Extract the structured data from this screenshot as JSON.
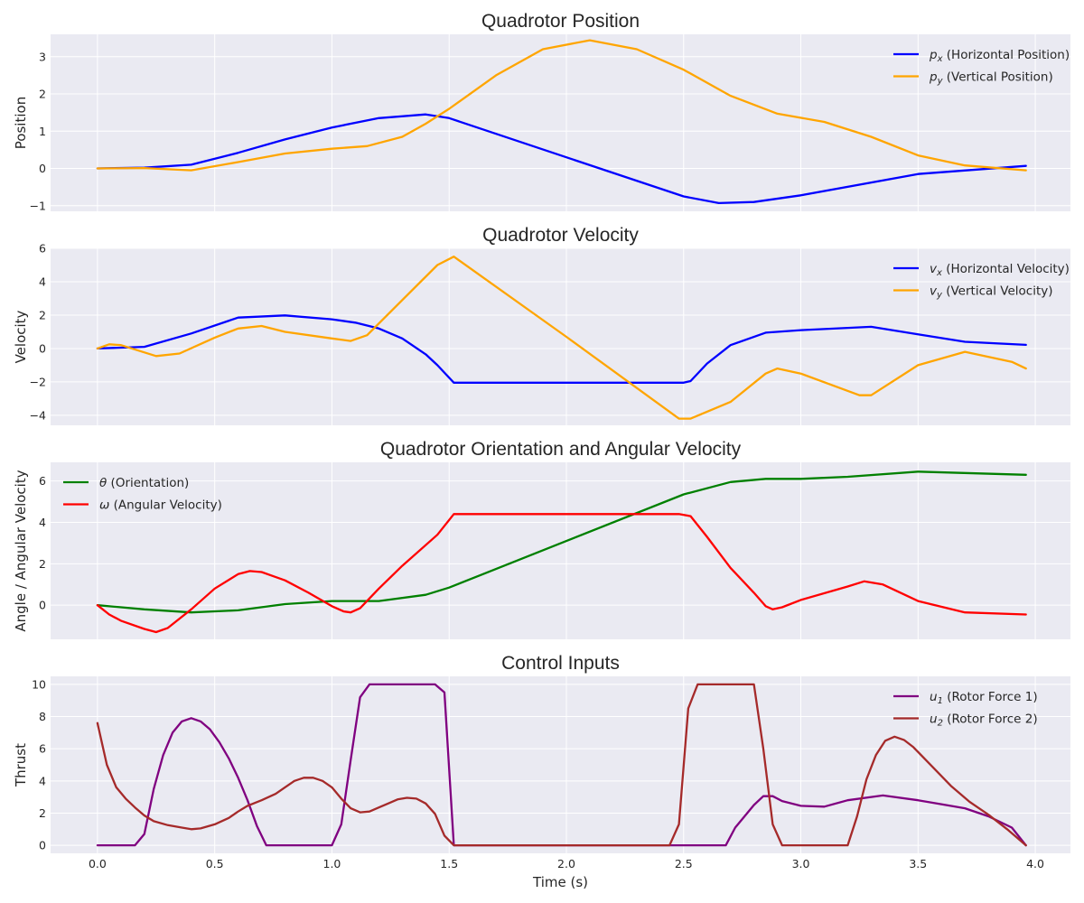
{
  "chart_data": [
    {
      "type": "line",
      "title": "Quadrotor Position",
      "xlabel": "",
      "ylabel": "Position",
      "xlim": [
        -0.2,
        4.15
      ],
      "ylim": [
        -1.15,
        3.6
      ],
      "xticks": [
        0.0,
        0.5,
        1.0,
        1.5,
        2.0,
        2.5,
        3.0,
        3.5,
        4.0
      ],
      "yticks": [
        -1,
        0,
        1,
        2,
        3
      ],
      "yticklabels": [
        "−1",
        "0",
        "1",
        "2",
        "3"
      ],
      "legend_position": "top-right",
      "series": [
        {
          "name": "p_x (Horizontal Position)",
          "label_base": "p",
          "label_sub": "x",
          "label_rest": " (Horizontal Position)",
          "color": "#0000ff",
          "x": [
            0,
            0.2,
            0.4,
            0.6,
            0.8,
            1.0,
            1.2,
            1.4,
            1.5,
            2.0,
            2.5,
            2.65,
            2.8,
            3.0,
            3.5,
            3.96
          ],
          "y": [
            0,
            0.02,
            0.1,
            0.42,
            0.78,
            1.1,
            1.35,
            1.45,
            1.35,
            0.3,
            -0.75,
            -0.93,
            -0.9,
            -0.72,
            -0.15,
            0.07
          ]
        },
        {
          "name": "p_y (Vertical Position)",
          "label_base": "p",
          "label_sub": "y",
          "label_rest": " (Vertical Position)",
          "color": "#ffa500",
          "x": [
            0,
            0.2,
            0.4,
            0.6,
            0.8,
            1.0,
            1.15,
            1.3,
            1.4,
            1.5,
            1.7,
            1.9,
            2.1,
            2.3,
            2.5,
            2.7,
            2.9,
            3.1,
            3.3,
            3.5,
            3.7,
            3.96
          ],
          "y": [
            0,
            0.01,
            -0.05,
            0.17,
            0.4,
            0.53,
            0.6,
            0.85,
            1.2,
            1.6,
            2.5,
            3.2,
            3.44,
            3.2,
            2.65,
            1.95,
            1.47,
            1.25,
            0.85,
            0.35,
            0.08,
            -0.05
          ]
        }
      ]
    },
    {
      "type": "line",
      "title": "Quadrotor Velocity",
      "xlabel": "",
      "ylabel": "Velocity",
      "xlim": [
        -0.2,
        4.15
      ],
      "ylim": [
        -4.6,
        6.0
      ],
      "xticks": [
        0.0,
        0.5,
        1.0,
        1.5,
        2.0,
        2.5,
        3.0,
        3.5,
        4.0
      ],
      "yticks": [
        -4,
        -2,
        0,
        2,
        4,
        6
      ],
      "yticklabels": [
        "−4",
        "−2",
        "0",
        "2",
        "4",
        "6"
      ],
      "legend_position": "top-right",
      "series": [
        {
          "name": "v_x (Horizontal Velocity)",
          "label_base": "v",
          "label_sub": "x",
          "label_rest": " (Horizontal Velocity)",
          "color": "#0000ff",
          "x": [
            0,
            0.2,
            0.4,
            0.6,
            0.8,
            1.0,
            1.1,
            1.2,
            1.3,
            1.4,
            1.45,
            1.52,
            2.0,
            2.5,
            2.53,
            2.6,
            2.7,
            2.85,
            3.0,
            3.3,
            3.5,
            3.7,
            3.96
          ],
          "y": [
            0,
            0.1,
            0.9,
            1.85,
            1.98,
            1.75,
            1.55,
            1.2,
            0.6,
            -0.35,
            -1.0,
            -2.05,
            -2.05,
            -2.05,
            -1.95,
            -0.9,
            0.2,
            0.95,
            1.1,
            1.3,
            0.85,
            0.4,
            0.22
          ]
        },
        {
          "name": "v_y (Vertical Velocity)",
          "label_base": "v",
          "label_sub": "y",
          "label_rest": " (Vertical Velocity)",
          "color": "#ffa500",
          "x": [
            0,
            0.05,
            0.1,
            0.25,
            0.35,
            0.5,
            0.6,
            0.7,
            0.8,
            1.0,
            1.08,
            1.15,
            1.3,
            1.45,
            1.52,
            2.0,
            2.48,
            2.53,
            2.7,
            2.85,
            2.9,
            3.0,
            3.25,
            3.3,
            3.5,
            3.7,
            3.9,
            3.96
          ],
          "y": [
            0,
            0.25,
            0.2,
            -0.45,
            -0.3,
            0.65,
            1.2,
            1.35,
            1.0,
            0.6,
            0.45,
            0.8,
            2.9,
            5.0,
            5.5,
            0.7,
            -4.2,
            -4.2,
            -3.2,
            -1.5,
            -1.2,
            -1.5,
            -2.8,
            -2.8,
            -1.0,
            -0.2,
            -0.8,
            -1.2
          ]
        }
      ]
    },
    {
      "type": "line",
      "title": "Quadrotor Orientation and Angular Velocity",
      "xlabel": "",
      "ylabel": "Angle / Angular Velocity",
      "xlim": [
        -0.2,
        4.15
      ],
      "ylim": [
        -1.65,
        6.9
      ],
      "xticks": [
        0.0,
        0.5,
        1.0,
        1.5,
        2.0,
        2.5,
        3.0,
        3.5,
        4.0
      ],
      "yticks": [
        0,
        2,
        4,
        6
      ],
      "yticklabels": [
        "0",
        "2",
        "4",
        "6"
      ],
      "legend_position": "top-left",
      "series": [
        {
          "name": "θ (Orientation)",
          "label_base": "θ",
          "label_sub": "",
          "label_rest": " (Orientation)",
          "color": "#008000",
          "x": [
            0,
            0.2,
            0.4,
            0.6,
            0.8,
            1.0,
            1.2,
            1.4,
            1.5,
            2.0,
            2.5,
            2.7,
            2.85,
            3.0,
            3.2,
            3.5,
            3.96
          ],
          "y": [
            0,
            -0.2,
            -0.35,
            -0.25,
            0.05,
            0.2,
            0.2,
            0.5,
            0.85,
            3.1,
            5.35,
            5.95,
            6.1,
            6.1,
            6.2,
            6.45,
            6.3
          ]
        },
        {
          "name": "ω (Angular Velocity)",
          "label_base": "ω",
          "label_sub": "",
          "label_rest": " (Angular Velocity)",
          "color": "#ff0000",
          "x": [
            0,
            0.05,
            0.1,
            0.2,
            0.25,
            0.3,
            0.4,
            0.5,
            0.6,
            0.65,
            0.7,
            0.8,
            0.9,
            1.0,
            1.05,
            1.08,
            1.12,
            1.2,
            1.3,
            1.45,
            1.52,
            2.0,
            2.48,
            2.53,
            2.6,
            2.7,
            2.8,
            2.85,
            2.88,
            2.92,
            3.0,
            3.2,
            3.27,
            3.35,
            3.5,
            3.7,
            3.96
          ],
          "y": [
            0,
            -0.45,
            -0.75,
            -1.15,
            -1.3,
            -1.1,
            -0.2,
            0.8,
            1.5,
            1.65,
            1.6,
            1.2,
            0.6,
            -0.05,
            -0.3,
            -0.35,
            -0.15,
            0.8,
            1.9,
            3.4,
            4.4,
            4.4,
            4.4,
            4.3,
            3.3,
            1.8,
            0.6,
            -0.05,
            -0.2,
            -0.1,
            0.25,
            0.9,
            1.15,
            1.0,
            0.2,
            -0.35,
            -0.45
          ]
        }
      ]
    },
    {
      "type": "line",
      "title": "Control Inputs",
      "xlabel": "Time (s)",
      "ylabel": "Thrust",
      "xlim": [
        -0.2,
        4.15
      ],
      "ylim": [
        -0.5,
        10.5
      ],
      "xticks": [
        0.0,
        0.5,
        1.0,
        1.5,
        2.0,
        2.5,
        3.0,
        3.5,
        4.0
      ],
      "yticks": [
        0,
        2,
        4,
        6,
        8,
        10
      ],
      "yticklabels": [
        "0",
        "2",
        "4",
        "6",
        "8",
        "10"
      ],
      "legend_position": "top-right",
      "series": [
        {
          "name": "u_1 (Rotor Force 1)",
          "label_base": "u",
          "label_sub": "1",
          "label_rest": " (Rotor Force 1)",
          "color": "#800080",
          "x": [
            0,
            0.16,
            0.2,
            0.24,
            0.28,
            0.32,
            0.36,
            0.4,
            0.44,
            0.48,
            0.52,
            0.56,
            0.6,
            0.64,
            0.68,
            0.72,
            1.0,
            1.04,
            1.08,
            1.12,
            1.16,
            1.44,
            1.48,
            1.52,
            2.68,
            2.72,
            2.8,
            2.84,
            2.88,
            2.92,
            3.0,
            3.1,
            3.2,
            3.35,
            3.5,
            3.7,
            3.8,
            3.9,
            3.96
          ],
          "y": [
            0,
            0,
            0.7,
            3.5,
            5.6,
            7.0,
            7.7,
            7.9,
            7.7,
            7.2,
            6.4,
            5.4,
            4.2,
            2.8,
            1.2,
            0,
            0,
            1.3,
            5.3,
            9.2,
            10,
            10,
            9.5,
            0,
            0,
            1.1,
            2.5,
            3.05,
            3.05,
            2.75,
            2.45,
            2.4,
            2.8,
            3.1,
            2.8,
            2.3,
            1.8,
            1.1,
            0
          ]
        },
        {
          "name": "u_2 (Rotor Force 2)",
          "label_base": "u",
          "label_sub": "2",
          "label_rest": " (Rotor Force 2)",
          "color": "#a52a2a",
          "x": [
            0,
            0.04,
            0.08,
            0.12,
            0.16,
            0.2,
            0.24,
            0.3,
            0.36,
            0.4,
            0.44,
            0.5,
            0.56,
            0.6,
            0.64,
            0.7,
            0.76,
            0.8,
            0.84,
            0.88,
            0.92,
            0.96,
            1.0,
            1.04,
            1.08,
            1.12,
            1.16,
            1.2,
            1.24,
            1.28,
            1.32,
            1.36,
            1.4,
            1.44,
            1.48,
            1.52,
            2.44,
            2.48,
            2.52,
            2.56,
            2.8,
            2.84,
            2.88,
            2.92,
            3.2,
            3.24,
            3.28,
            3.32,
            3.36,
            3.4,
            3.44,
            3.48,
            3.56,
            3.64,
            3.72,
            3.8,
            3.88,
            3.96
          ],
          "y": [
            7.6,
            5.0,
            3.6,
            2.9,
            2.35,
            1.85,
            1.5,
            1.25,
            1.1,
            1.0,
            1.05,
            1.3,
            1.7,
            2.1,
            2.45,
            2.8,
            3.2,
            3.6,
            4.0,
            4.2,
            4.2,
            4.0,
            3.6,
            2.9,
            2.3,
            2.05,
            2.1,
            2.35,
            2.6,
            2.85,
            2.95,
            2.9,
            2.6,
            1.95,
            0.6,
            0,
            0,
            1.3,
            8.5,
            10,
            10,
            6.0,
            1.3,
            0,
            0,
            1.8,
            4.1,
            5.6,
            6.5,
            6.75,
            6.55,
            6.1,
            4.9,
            3.7,
            2.7,
            1.9,
            1.0,
            0
          ]
        }
      ]
    }
  ]
}
